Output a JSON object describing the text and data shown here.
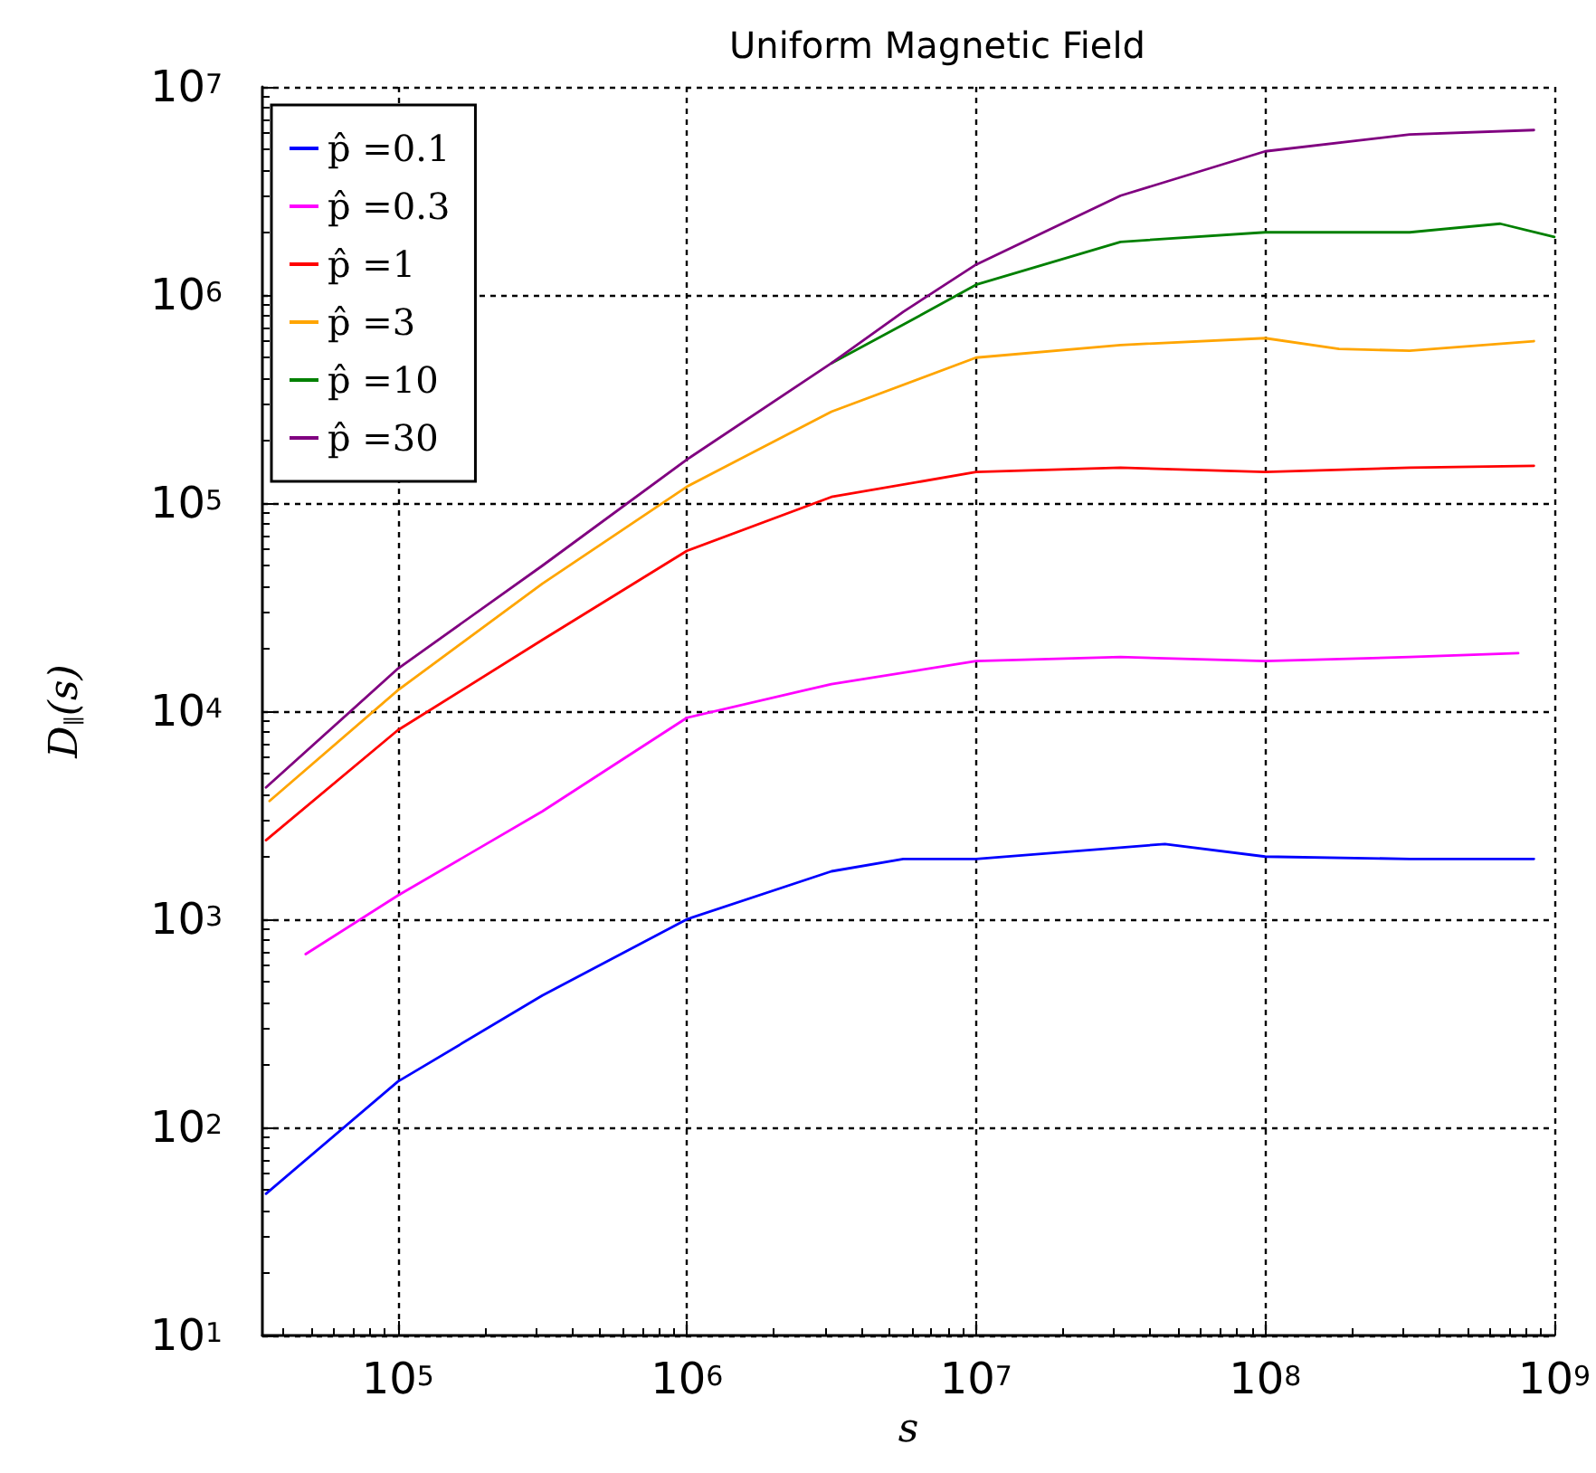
{
  "chart_data": {
    "type": "line",
    "title": "Uniform Magnetic Field",
    "xlabel": "s",
    "ylabel": "D$_{∥}$(s)",
    "log": "xy",
    "grid": true,
    "legend": "top left",
    "marker": "none",
    "line_style": "solid",
    "xlim": [
      34000,
      1000000000
    ],
    "xticks": [
      {
        "value": 100000,
        "label": "10$^{5}$"
      },
      {
        "value": 1000000,
        "label": "10$^{6}$"
      },
      {
        "value": 10000000,
        "label": "10$^{7}$"
      },
      {
        "value": 100000000,
        "label": "10$^{8}$"
      },
      {
        "value": 1000000000,
        "label": "10$^{9}$"
      }
    ],
    "ylim": [
      10,
      10000000
    ],
    "yticks": [
      {
        "value": 10,
        "label": "10$^{1}$"
      },
      {
        "value": 100,
        "label": "10$^{2}$"
      },
      {
        "value": 1000,
        "label": "10$^{3}$"
      },
      {
        "value": 10000,
        "label": "10$^{4}$"
      },
      {
        "value": 100000,
        "label": "10$^{5}$"
      },
      {
        "value": 1000000,
        "label": "10$^{6}$"
      },
      {
        "value": 10000000,
        "label": "10$^{7}$"
      }
    ],
    "series": [
      {
        "name": "p̂ =0.1",
        "color": "#0000ff",
        "x": [
          35000,
          100000,
          316000,
          1000000,
          3160000,
          5600000,
          10000000,
          45000000,
          100000000,
          316000000,
          850000000
        ],
        "values": [
          48,
          166,
          430,
          1000,
          1700,
          1950,
          1950,
          2300,
          2000,
          1950,
          1950
        ]
      },
      {
        "name": "p̂ =0.3",
        "color": "#ff00ff",
        "x": [
          48000,
          100000,
          316000,
          1000000,
          3160000,
          10000000,
          31600000,
          100000000,
          316000000,
          750000000
        ],
        "values": [
          680,
          1300,
          3300,
          9300,
          13500,
          17400,
          18200,
          17400,
          18200,
          19000
        ]
      },
      {
        "name": "p̂ =1",
        "color": "#ff0000",
        "x": [
          35000,
          100000,
          316000,
          1000000,
          3160000,
          10000000,
          31600000,
          100000000,
          316000000,
          850000000
        ],
        "values": [
          2400,
          8100,
          22000,
          59000,
          107000,
          141000,
          148000,
          141000,
          148000,
          151000
        ]
      },
      {
        "name": "p̂ =3",
        "color": "#ffa500",
        "x": [
          36000,
          100000,
          316000,
          1000000,
          3160000,
          10000000,
          31600000,
          100000000,
          180000000,
          316000000,
          850000000
        ],
        "values": [
          3700,
          12600,
          41000,
          120000,
          275000,
          500000,
          575000,
          620000,
          550000,
          540000,
          600000
        ]
      },
      {
        "name": "p̂ =10",
        "color": "#008000",
        "x": [
          3160000,
          5600000,
          10000000,
          31600000,
          100000000,
          316000000,
          650000000,
          1000000000
        ],
        "values": [
          470000,
          720000,
          1120000,
          1800000,
          2000000,
          2000000,
          2200000,
          1900000
        ]
      },
      {
        "name": "p̂ =30",
        "color": "#800080",
        "x": [
          35000,
          100000,
          316000,
          1000000,
          3160000,
          5600000,
          10000000,
          31600000,
          100000000,
          316000000,
          850000000
        ],
        "values": [
          4300,
          16000,
          50000,
          162000,
          470000,
          830000,
          1400000,
          3000000,
          4900000,
          5900000,
          6200000
        ]
      }
    ]
  }
}
